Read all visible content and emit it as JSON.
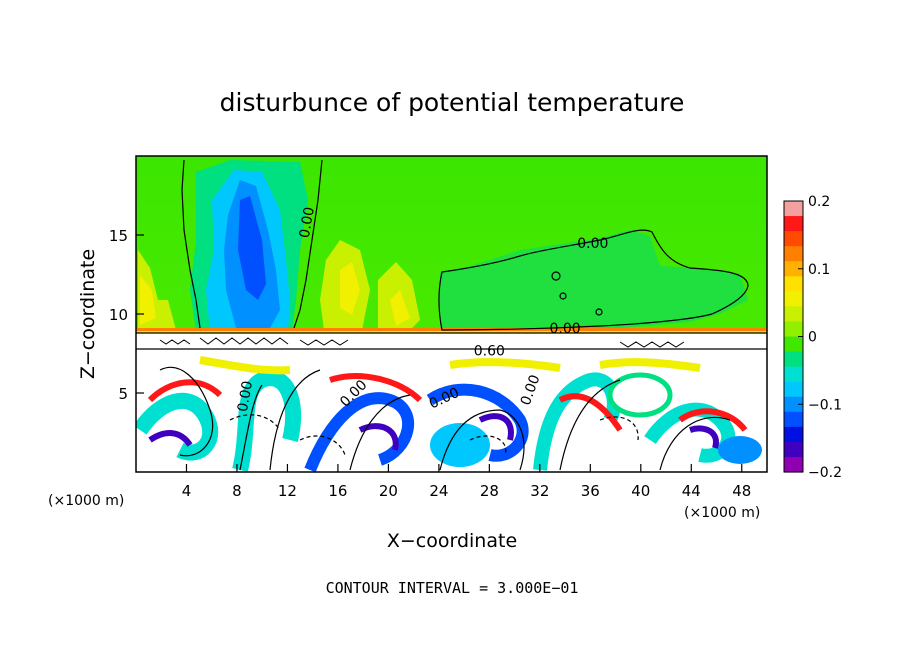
{
  "chart_data": {
    "type": "heatmap",
    "title": "disturbunce of potential temperature",
    "xlabel": "X−coordinate",
    "ylabel": "Z−coordinate",
    "x_unit": "(×1000 m)",
    "x_unit_right": "(×1000 m)",
    "xlim": [
      0,
      50
    ],
    "ylim": [
      0,
      20
    ],
    "x_ticks": [
      4,
      8,
      12,
      16,
      20,
      24,
      28,
      32,
      36,
      40,
      44,
      48
    ],
    "y_ticks": [
      5,
      10,
      15
    ],
    "contour_interval_text": "CONTOUR INTERVAL = 3.000E−01",
    "contour_labels": [
      {
        "text": "0.00",
        "x": 13.5,
        "z": 15.8,
        "rotate": -80
      },
      {
        "text": "0.00",
        "x": 36.2,
        "z": 14.5,
        "rotate": 0
      },
      {
        "text": "0.00",
        "x": 34.0,
        "z": 9.1,
        "rotate": 0
      },
      {
        "text": "0.60",
        "x": 28.0,
        "z": 7.7,
        "rotate": 0
      },
      {
        "text": "0.00",
        "x": 8.6,
        "z": 4.8,
        "rotate": -80
      },
      {
        "text": "0.00",
        "x": 17.2,
        "z": 5.0,
        "rotate": -45
      },
      {
        "text": "0.00",
        "x": 24.4,
        "z": 4.7,
        "rotate": -25
      },
      {
        "text": "0.00",
        "x": 31.2,
        "z": 5.2,
        "rotate": -70
      }
    ],
    "colorbar": {
      "min": -0.2,
      "max": 0.2,
      "ticks": [
        "0.2",
        "0.1",
        "0",
        "−0.1",
        "−0.2"
      ],
      "colors": [
        "#f4a0a0",
        "#ff1818",
        "#ff4a00",
        "#ff8000",
        "#ffb000",
        "#ffe000",
        "#f0f000",
        "#c8f000",
        "#90f000",
        "#40e800",
        "#00e080",
        "#00e0d0",
        "#00c8ff",
        "#0090ff",
        "#0050ff",
        "#0010e0",
        "#4000c0",
        "#9000b0"
      ]
    }
  }
}
